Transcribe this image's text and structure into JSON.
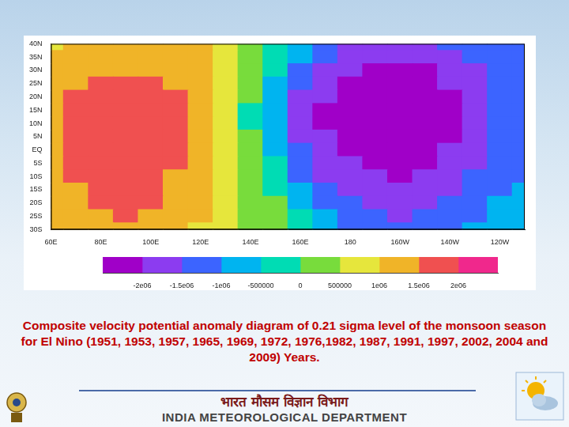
{
  "chart_data": {
    "type": "heatmap",
    "title": "Composite velocity potential anomaly diagram of 0.21 sigma level of the monsoon season for El Nino (1951, 1953, 1957, 1965, 1969, 1972, 1976,1982, 1987, 1991, 1997, 2002, 2004 and 2009) Years.",
    "x": [
      60,
      70,
      80,
      90,
      100,
      110,
      120,
      130,
      140,
      150,
      160,
      170,
      180,
      190,
      200,
      210,
      220,
      230,
      240,
      250
    ],
    "y": [
      40,
      35,
      30,
      25,
      20,
      15,
      10,
      5,
      0,
      -5,
      -10,
      -15,
      -20,
      -25,
      -30
    ],
    "cells": [
      [
        900000,
        1100000,
        1200000,
        1200000,
        1200000,
        1200000,
        1100000,
        800000,
        300000,
        -200000,
        -800000,
        -1300000,
        -1600000,
        -1800000,
        -1800000,
        -1700000,
        -1500000,
        -1300000,
        -1200000,
        -1100000
      ],
      [
        1000000,
        1200000,
        1300000,
        1300000,
        1300000,
        1300000,
        1100000,
        800000,
        300000,
        -300000,
        -1000000,
        -1500000,
        -1800000,
        -2000000,
        -2000000,
        -1900000,
        -1700000,
        -1500000,
        -1300000,
        -1200000
      ],
      [
        1100000,
        1300000,
        1400000,
        1450000,
        1400000,
        1300000,
        1100000,
        700000,
        200000,
        -400000,
        -1200000,
        -1700000,
        -2000000,
        -2100000,
        -2200000,
        -2100000,
        -1900000,
        -1600000,
        -1400000,
        -1300000
      ],
      [
        1200000,
        1400000,
        1550000,
        1600000,
        1550000,
        1400000,
        1100000,
        700000,
        100000,
        -600000,
        -1400000,
        -1900000,
        -2100000,
        -2200000,
        -2300000,
        -2200000,
        -2000000,
        -1700000,
        -1400000,
        -1300000
      ],
      [
        1300000,
        1500000,
        1650000,
        1700000,
        1650000,
        1500000,
        1100000,
        600000,
        0,
        -800000,
        -1600000,
        -2000000,
        -2200000,
        -2300000,
        -2300000,
        -2300000,
        -2100000,
        -1800000,
        -1500000,
        -1400000
      ],
      [
        1300000,
        1550000,
        1700000,
        1800000,
        1750000,
        1550000,
        1150000,
        600000,
        -100000,
        -900000,
        -1700000,
        -2100000,
        -2200000,
        -2300000,
        -2400000,
        -2300000,
        -2100000,
        -1800000,
        -1500000,
        -1400000
      ],
      [
        1350000,
        1600000,
        1750000,
        1850000,
        1800000,
        1600000,
        1200000,
        600000,
        -100000,
        -900000,
        -1700000,
        -2100000,
        -2200000,
        -2300000,
        -2400000,
        -2300000,
        -2100000,
        -1800000,
        -1500000,
        -1400000
      ],
      [
        1350000,
        1600000,
        1750000,
        1850000,
        1800000,
        1600000,
        1200000,
        600000,
        0,
        -800000,
        -1600000,
        -2000000,
        -2200000,
        -2300000,
        -2300000,
        -2300000,
        -2100000,
        -1800000,
        -1500000,
        -1400000
      ],
      [
        1300000,
        1550000,
        1750000,
        1800000,
        1750000,
        1550000,
        1200000,
        700000,
        100000,
        -700000,
        -1500000,
        -1900000,
        -2100000,
        -2200000,
        -2300000,
        -2200000,
        -2000000,
        -1700000,
        -1400000,
        -1300000
      ],
      [
        1300000,
        1550000,
        1700000,
        1750000,
        1700000,
        1500000,
        1200000,
        700000,
        200000,
        -500000,
        -1300000,
        -1800000,
        -2000000,
        -2100000,
        -2200000,
        -2100000,
        -1900000,
        -1600000,
        -1300000,
        -1200000
      ],
      [
        1250000,
        1500000,
        1650000,
        1700000,
        1650000,
        1450000,
        1150000,
        800000,
        300000,
        -300000,
        -1100000,
        -1600000,
        -1900000,
        -2000000,
        -2100000,
        -2000000,
        -1800000,
        -1500000,
        -1200000,
        -1100000
      ],
      [
        1200000,
        1450000,
        1600000,
        1650000,
        1600000,
        1400000,
        1100000,
        800000,
        400000,
        -100000,
        -800000,
        -1400000,
        -1700000,
        -1900000,
        -2000000,
        -1900000,
        -1600000,
        -1300000,
        -1100000,
        -1000000
      ],
      [
        1150000,
        1400000,
        1550000,
        1600000,
        1550000,
        1350000,
        1050000,
        800000,
        400000,
        0,
        -600000,
        -1100000,
        -1500000,
        -1700000,
        -1800000,
        -1700000,
        -1400000,
        -1200000,
        -1000000,
        -900000
      ],
      [
        1100000,
        1300000,
        1450000,
        1500000,
        1450000,
        1300000,
        1000000,
        700000,
        400000,
        0,
        -500000,
        -900000,
        -1200000,
        -1500000,
        -1600000,
        -1500000,
        -1300000,
        -1100000,
        -900000,
        -800000
      ],
      [
        1000000,
        1200000,
        1350000,
        1400000,
        1350000,
        1200000,
        950000,
        700000,
        400000,
        0,
        -400000,
        -800000,
        -1100000,
        -1300000,
        -1400000,
        -1300000,
        -1100000,
        -1000000,
        -800000,
        -700000
      ]
    ],
    "xlim": [
      60,
      250
    ],
    "xticks": [
      {
        "value": 60,
        "label": "60E"
      },
      {
        "value": 80,
        "label": "80E"
      },
      {
        "value": 100,
        "label": "100E"
      },
      {
        "value": 120,
        "label": "120E"
      },
      {
        "value": 140,
        "label": "140E"
      },
      {
        "value": 160,
        "label": "160E"
      },
      180,
      {
        "value": 200,
        "label": "160W"
      },
      {
        "value": 220,
        "label": "140W"
      },
      {
        "value": 240,
        "label": "120W"
      }
    ],
    "ylim": [
      -30,
      40
    ],
    "yticks": [
      {
        "value": -30,
        "label": "30S"
      },
      {
        "value": -25,
        "label": "25S"
      },
      {
        "value": -20,
        "label": "20S"
      },
      {
        "value": -15,
        "label": "15S"
      },
      {
        "value": -10,
        "label": "10S"
      },
      {
        "value": -5,
        "label": "5S"
      },
      {
        "value": 0,
        "label": "EQ"
      },
      {
        "value": 5,
        "label": "5N"
      },
      {
        "value": 10,
        "label": "10N"
      },
      {
        "value": 15,
        "label": "15N"
      },
      {
        "value": 20,
        "label": "20N"
      },
      {
        "value": 25,
        "label": "25N"
      },
      {
        "value": 30,
        "label": "30N"
      },
      {
        "value": 35,
        "label": "35N"
      },
      {
        "value": 40,
        "label": "40N"
      }
    ],
    "grid": false,
    "colorbar": {
      "range": [
        -2500000,
        2500000
      ],
      "ticks": [
        {
          "value": -2000000,
          "label": "-2e06"
        },
        {
          "value": -1500000,
          "label": "-1.5e06"
        },
        {
          "value": -1000000,
          "label": "-1e06"
        },
        -500000,
        0,
        500000,
        {
          "value": 1000000,
          "label": "1e06"
        },
        {
          "value": 1500000,
          "label": "1.5e06"
        },
        {
          "value": 2000000,
          "label": "2e06"
        }
      ],
      "colors": [
        "#a000c8",
        "#8c3cf0",
        "#3c64ff",
        "#00b4f0",
        "#00dcb4",
        "#78dc3c",
        "#e6e63c",
        "#f0b428",
        "#f05050",
        "#f0288c"
      ]
    }
  },
  "slide": {
    "organisation_hindi": "भारत मौसम विज्ञान विभाग",
    "organisation": "INDIA METEOROLOGICAL DEPARTMENT"
  }
}
